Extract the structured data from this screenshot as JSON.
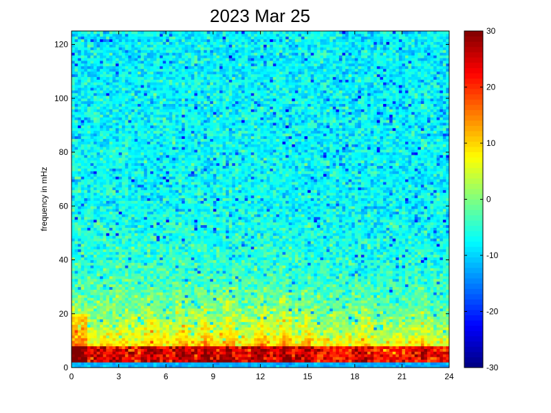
{
  "chart_data": {
    "type": "heatmap",
    "title": "2023 Mar 25",
    "xlabel": "",
    "ylabel": "frequency in mHz",
    "xlim": [
      0,
      24
    ],
    "ylim": [
      0,
      125
    ],
    "xticks": [
      0,
      3,
      6,
      9,
      12,
      15,
      18,
      21,
      24
    ],
    "yticks": [
      0,
      20,
      40,
      60,
      80,
      100,
      120
    ],
    "colormap": "jet",
    "colorbar": {
      "range": [
        -30,
        30
      ],
      "ticks": [
        -30,
        -20,
        -10,
        0,
        10,
        20,
        30
      ]
    },
    "grid": false,
    "x_resolution_hours": 0.2,
    "y_resolution_mhz": 1,
    "bursts_at_hours": [
      5,
      7,
      8.5,
      10,
      12,
      13.5,
      15,
      18.6,
      22.3
    ],
    "baseline_band_mhz": [
      0,
      2
    ],
    "strong_band_mhz": [
      2,
      8
    ]
  }
}
